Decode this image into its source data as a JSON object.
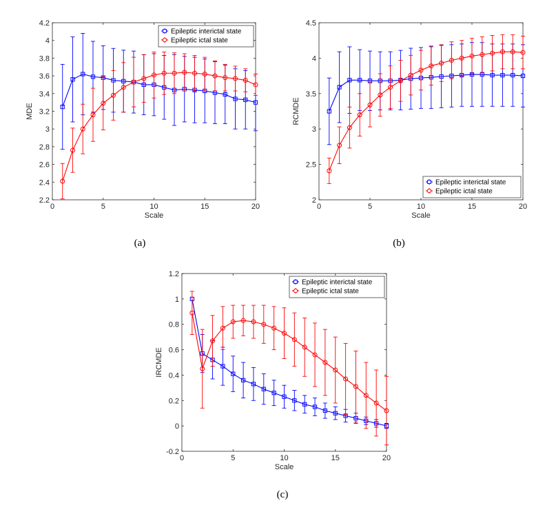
{
  "chart_data": [
    {
      "type": "line",
      "panel_label": "(a)",
      "xlabel": "Scale",
      "ylabel": "MDE",
      "xlim": [
        0,
        20
      ],
      "ylim": [
        2.2,
        4.2
      ],
      "xticks": [
        0,
        5,
        10,
        15,
        20
      ],
      "yticks": [
        2.2,
        2.4,
        2.6,
        2.8,
        3,
        3.2,
        3.4,
        3.6,
        3.8,
        4,
        4.2
      ],
      "legend_position": "top-right",
      "x": [
        1,
        2,
        3,
        4,
        5,
        6,
        7,
        8,
        9,
        10,
        11,
        12,
        13,
        14,
        15,
        16,
        17,
        18,
        19,
        20
      ],
      "series": [
        {
          "name": "Epileptic interictal state",
          "color": "#0000ff",
          "marker": "square",
          "values": [
            3.25,
            3.56,
            3.62,
            3.59,
            3.58,
            3.55,
            3.54,
            3.53,
            3.5,
            3.5,
            3.47,
            3.44,
            3.45,
            3.44,
            3.43,
            3.41,
            3.39,
            3.34,
            3.33,
            3.3
          ],
          "errors": [
            0.48,
            0.48,
            0.46,
            0.4,
            0.36,
            0.36,
            0.35,
            0.35,
            0.34,
            0.35,
            0.36,
            0.4,
            0.37,
            0.37,
            0.36,
            0.35,
            0.33,
            0.34,
            0.33,
            0.32
          ]
        },
        {
          "name": "Epileptic ictal state",
          "color": "#ff0000",
          "marker": "circle",
          "values": [
            2.41,
            2.76,
            3.0,
            3.16,
            3.29,
            3.38,
            3.47,
            3.53,
            3.57,
            3.61,
            3.63,
            3.63,
            3.64,
            3.63,
            3.62,
            3.6,
            3.58,
            3.57,
            3.55,
            3.5
          ],
          "errors": [
            0.2,
            0.25,
            0.28,
            0.3,
            0.3,
            0.28,
            0.28,
            0.28,
            0.27,
            0.26,
            0.24,
            0.23,
            0.21,
            0.2,
            0.19,
            0.17,
            0.15,
            0.14,
            0.13,
            0.12
          ]
        }
      ]
    },
    {
      "type": "line",
      "panel_label": "(b)",
      "xlabel": "Scale",
      "ylabel": "RCMDE",
      "xlim": [
        0,
        20
      ],
      "ylim": [
        2,
        4.5
      ],
      "xticks": [
        0,
        5,
        10,
        15,
        20
      ],
      "yticks": [
        2,
        2.5,
        3,
        3.5,
        4,
        4.5
      ],
      "legend_position": "bottom-right",
      "x": [
        1,
        2,
        3,
        4,
        5,
        6,
        7,
        8,
        9,
        10,
        11,
        12,
        13,
        14,
        15,
        16,
        17,
        18,
        19,
        20
      ],
      "series": [
        {
          "name": "Epileptic interictal state",
          "color": "#0000ff",
          "marker": "square",
          "values": [
            3.25,
            3.59,
            3.69,
            3.69,
            3.68,
            3.68,
            3.68,
            3.69,
            3.71,
            3.72,
            3.73,
            3.74,
            3.75,
            3.76,
            3.77,
            3.77,
            3.76,
            3.76,
            3.76,
            3.75
          ],
          "errors": [
            0.47,
            0.5,
            0.47,
            0.43,
            0.42,
            0.41,
            0.41,
            0.42,
            0.43,
            0.43,
            0.44,
            0.44,
            0.44,
            0.44,
            0.45,
            0.45,
            0.44,
            0.44,
            0.44,
            0.44
          ]
        },
        {
          "name": "Epileptic ictal state",
          "color": "#ff0000",
          "marker": "circle",
          "values": [
            2.41,
            2.77,
            3.02,
            3.2,
            3.34,
            3.48,
            3.59,
            3.68,
            3.76,
            3.83,
            3.89,
            3.93,
            3.97,
            4.0,
            4.03,
            4.05,
            4.07,
            4.09,
            4.09,
            4.08
          ],
          "errors": [
            0.18,
            0.26,
            0.29,
            0.3,
            0.31,
            0.3,
            0.3,
            0.29,
            0.28,
            0.28,
            0.27,
            0.26,
            0.26,
            0.25,
            0.25,
            0.25,
            0.25,
            0.24,
            0.24,
            0.23
          ]
        }
      ]
    },
    {
      "type": "line",
      "panel_label": "(c)",
      "xlabel": "Scale",
      "ylabel": "IRCMDE",
      "xlim": [
        0,
        20
      ],
      "ylim": [
        -0.2,
        1.2
      ],
      "xticks": [
        0,
        5,
        10,
        15,
        20
      ],
      "yticks": [
        -0.2,
        0,
        0.2,
        0.4,
        0.6,
        0.8,
        1,
        1.2
      ],
      "legend_position": "top-right",
      "x": [
        1,
        2,
        3,
        4,
        5,
        6,
        7,
        8,
        9,
        10,
        11,
        12,
        13,
        14,
        15,
        16,
        17,
        18,
        19,
        20
      ],
      "series": [
        {
          "name": "Epileptic interictal state",
          "color": "#0000ff",
          "marker": "square",
          "values": [
            1.0,
            0.57,
            0.52,
            0.47,
            0.41,
            0.36,
            0.33,
            0.29,
            0.26,
            0.23,
            0.2,
            0.17,
            0.15,
            0.12,
            0.1,
            0.08,
            0.06,
            0.04,
            0.02,
            0.0
          ],
          "errors": [
            0.0,
            0.15,
            0.15,
            0.15,
            0.14,
            0.14,
            0.13,
            0.12,
            0.1,
            0.09,
            0.08,
            0.07,
            0.07,
            0.06,
            0.05,
            0.05,
            0.04,
            0.03,
            0.03,
            0.02
          ]
        },
        {
          "name": "Epileptic ictal state",
          "color": "#ff0000",
          "marker": "circle",
          "values": [
            0.89,
            0.45,
            0.67,
            0.77,
            0.82,
            0.83,
            0.82,
            0.8,
            0.77,
            0.73,
            0.68,
            0.62,
            0.56,
            0.5,
            0.44,
            0.37,
            0.31,
            0.24,
            0.18,
            0.12
          ],
          "errors": [
            0.17,
            0.31,
            0.2,
            0.17,
            0.13,
            0.12,
            0.13,
            0.15,
            0.17,
            0.2,
            0.21,
            0.23,
            0.25,
            0.26,
            0.26,
            0.28,
            0.28,
            0.26,
            0.26,
            0.27
          ]
        }
      ]
    }
  ]
}
